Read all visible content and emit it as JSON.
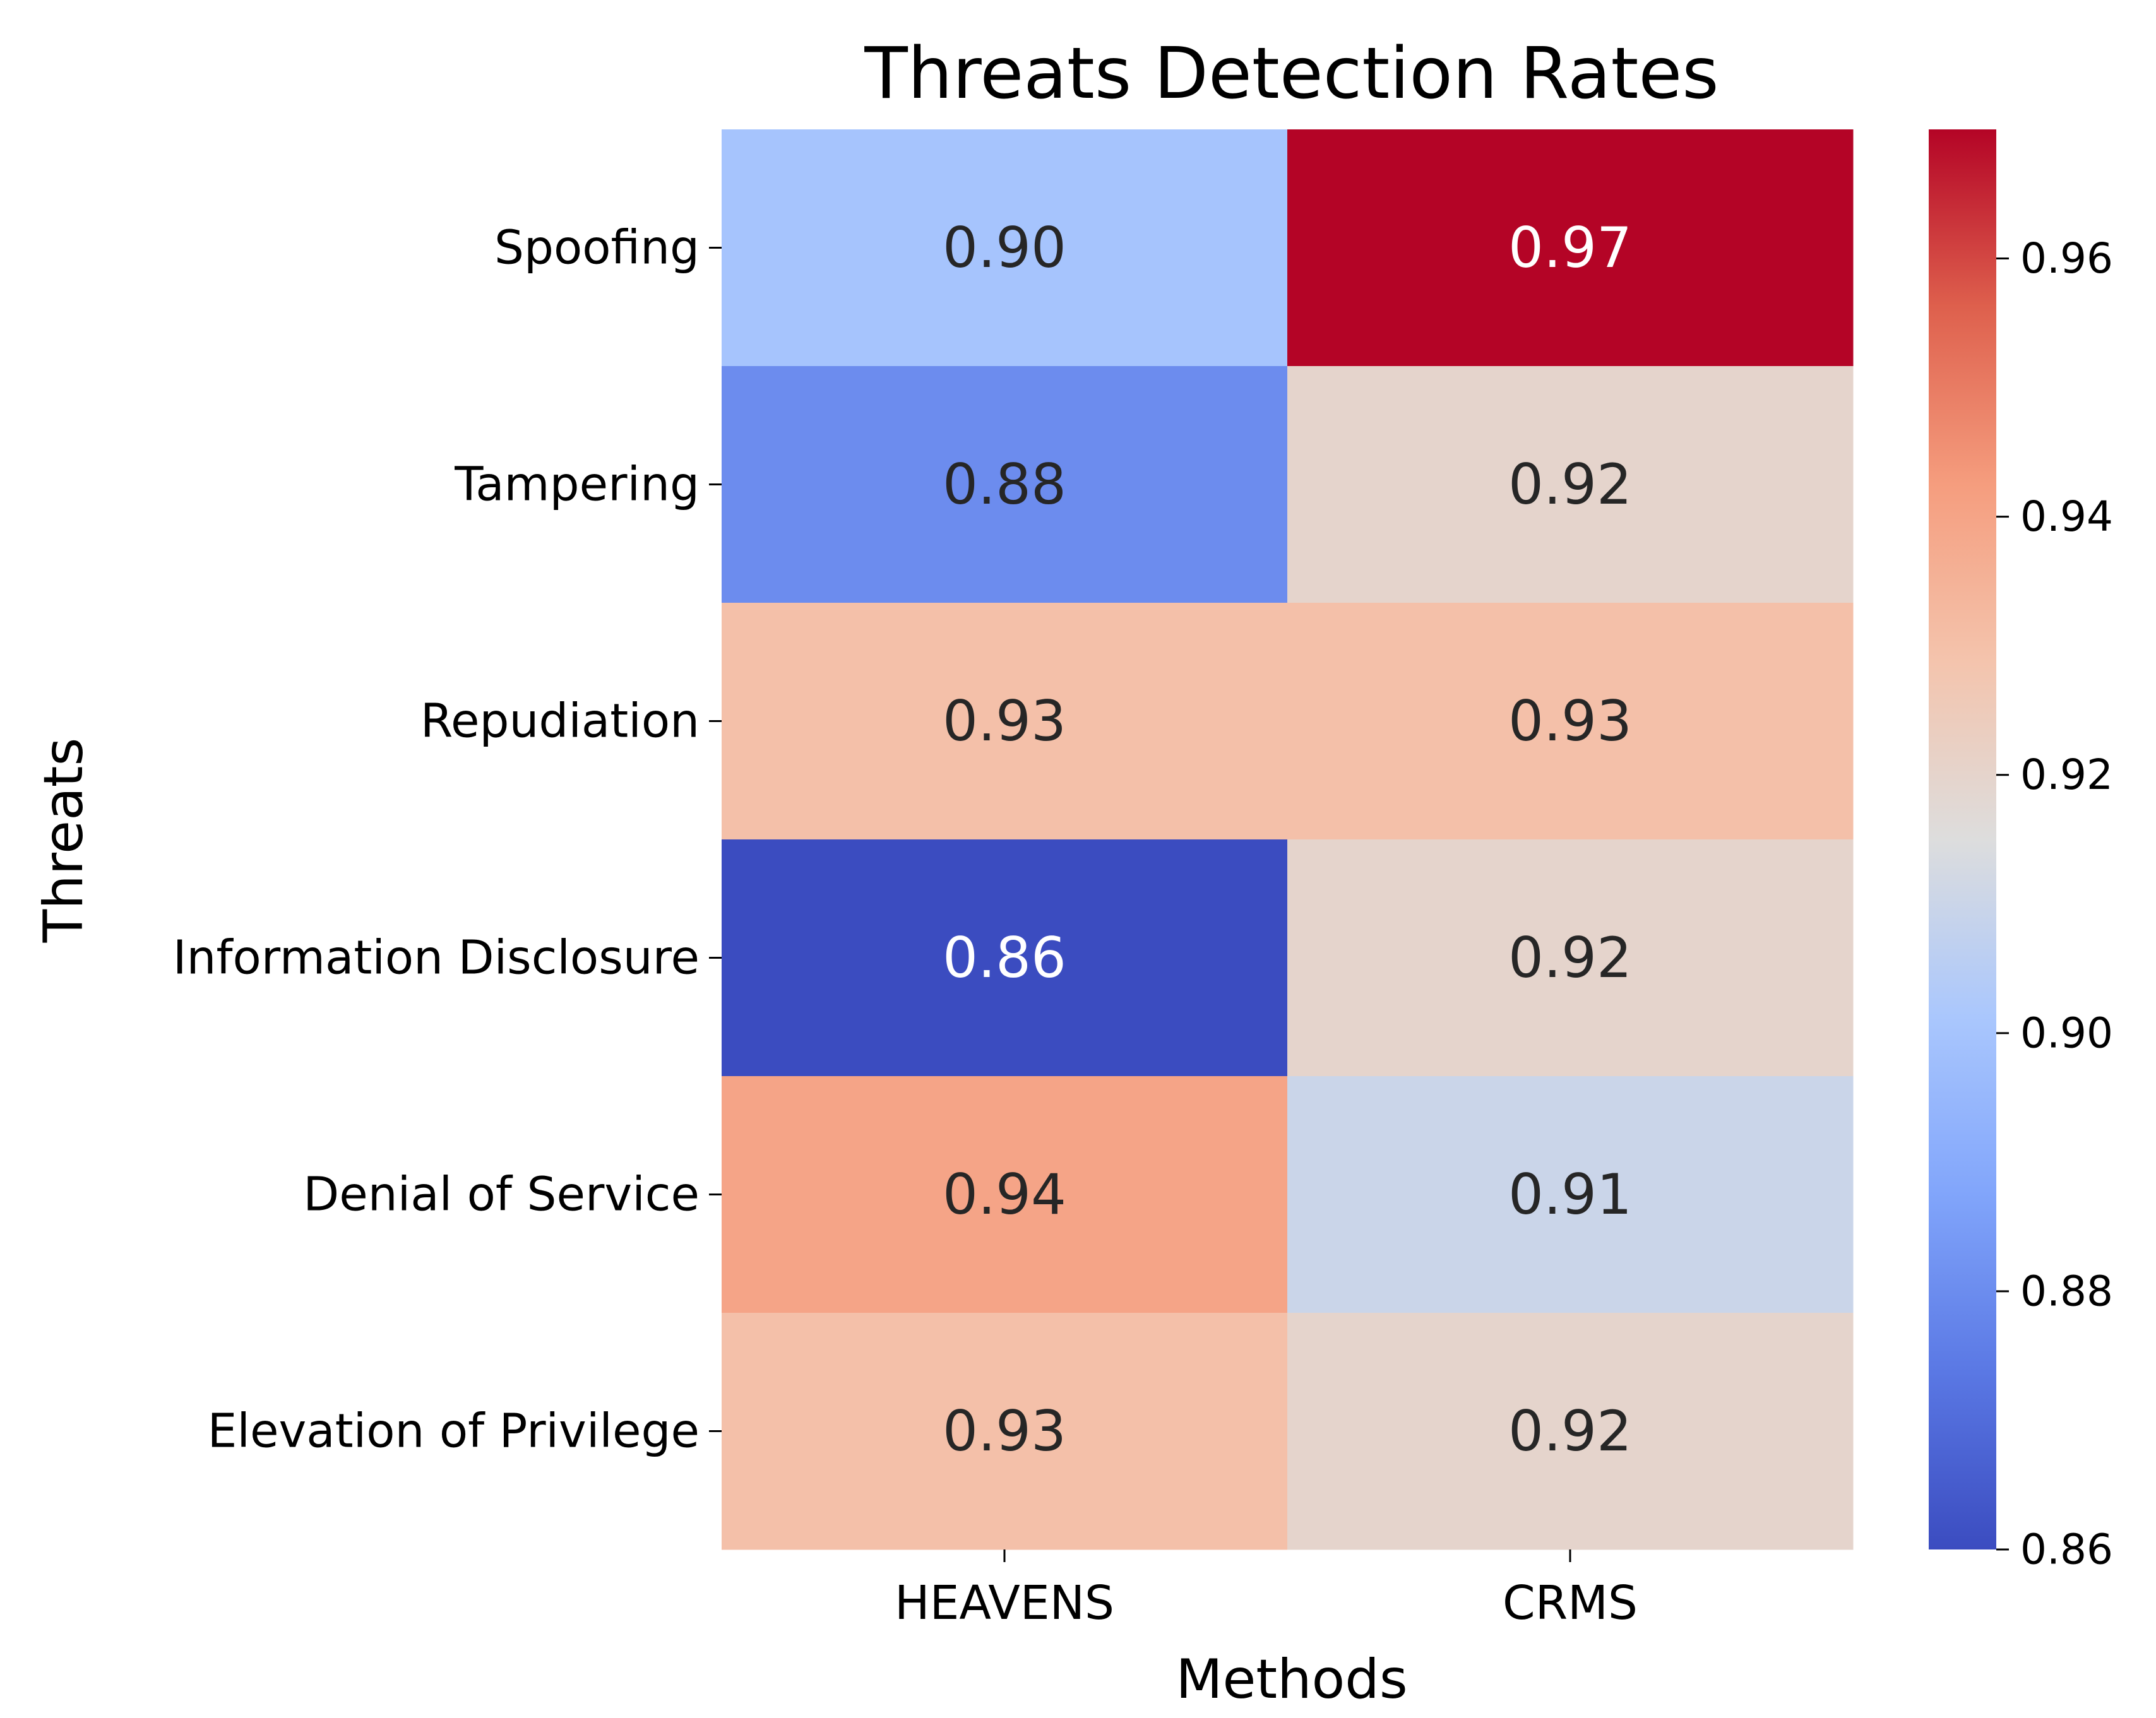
{
  "chart_data": {
    "type": "heatmap",
    "title": "Threats Detection Rates",
    "xlabel": "Methods",
    "ylabel": "Threats",
    "columns": [
      "HEAVENS",
      "CRMS"
    ],
    "rows": [
      "Spoofing",
      "Tampering",
      "Repudiation",
      "Information Disclosure",
      "Denial of Service",
      "Elevation of Privilege"
    ],
    "values": [
      [
        0.9,
        0.97
      ],
      [
        0.88,
        0.92
      ],
      [
        0.93,
        0.93
      ],
      [
        0.86,
        0.92
      ],
      [
        0.94,
        0.91
      ],
      [
        0.93,
        0.92
      ]
    ],
    "value_labels": [
      [
        "0.90",
        "0.97"
      ],
      [
        "0.88",
        "0.92"
      ],
      [
        "0.93",
        "0.93"
      ],
      [
        "0.86",
        "0.92"
      ],
      [
        "0.94",
        "0.91"
      ],
      [
        "0.93",
        "0.92"
      ]
    ],
    "colormap": "coolwarm",
    "colorbar": {
      "min": 0.86,
      "max": 0.97,
      "ticks": [
        0.86,
        0.88,
        0.9,
        0.92,
        0.94,
        0.96
      ],
      "tick_labels": [
        "0.86",
        "0.88",
        "0.90",
        "0.92",
        "0.94",
        "0.96"
      ]
    }
  }
}
